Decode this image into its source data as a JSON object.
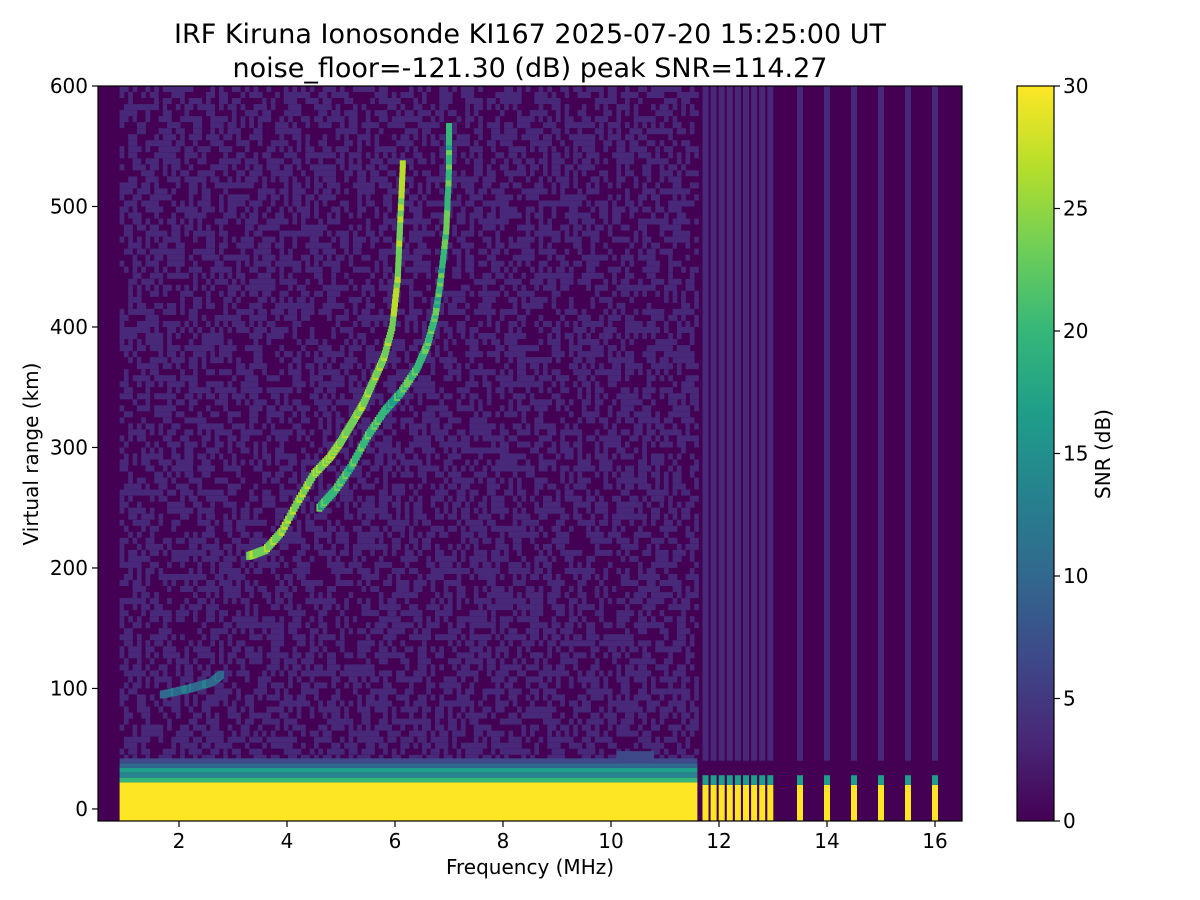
{
  "chart_data": {
    "type": "heatmap",
    "title": "IRF Kiruna Ionosonde KI167 2025-07-20 15:25:00  UT",
    "subtitle": "noise_floor=-121.30 (dB) peak SNR=114.27",
    "xlabel": "Frequency (MHz)",
    "ylabel": "Virtual range (km)",
    "xlim": [
      0.5,
      16.5
    ],
    "ylim": [
      -10,
      600
    ],
    "x_ticks": [
      2,
      4,
      6,
      8,
      10,
      12,
      14,
      16
    ],
    "x_tick_labels": [
      "2",
      "4",
      "6",
      "8",
      "10",
      "12",
      "14",
      "16"
    ],
    "y_ticks": [
      0,
      100,
      200,
      300,
      400,
      500,
      600
    ],
    "y_tick_labels": [
      "0",
      "100",
      "200",
      "300",
      "400",
      "500",
      "600"
    ],
    "colorbar": {
      "label": "SNR (dB)",
      "range": [
        0,
        30
      ],
      "ticks": [
        0,
        5,
        10,
        15,
        20,
        25,
        30
      ],
      "tick_labels": [
        "0",
        "5",
        "10",
        "15",
        "20",
        "25",
        "30"
      ],
      "colormap": "viridis",
      "colors": [
        "#440154",
        "#482878",
        "#3e4989",
        "#31688e",
        "#26828e",
        "#1f9e89",
        "#35b779",
        "#6ece58",
        "#b5de2b",
        "#fde725"
      ]
    },
    "sweep_frequency_range_mhz": [
      0.9,
      16.0
    ],
    "continuous_sweep_end_mhz": 11.6,
    "discrete_channels_mhz": [
      11.75,
      11.9,
      12.05,
      12.2,
      12.35,
      12.5,
      12.65,
      12.8,
      12.95,
      13.5,
      14.0,
      14.5,
      15.0,
      15.5,
      16.0
    ],
    "ground_echo_range_km": [
      0,
      40
    ],
    "traces": [
      {
        "mode": "o-mode",
        "points": [
          [
            3.3,
            210
          ],
          [
            3.6,
            215
          ],
          [
            3.9,
            230
          ],
          [
            4.2,
            255
          ],
          [
            4.5,
            278
          ],
          [
            4.8,
            292
          ],
          [
            5.0,
            305
          ],
          [
            5.2,
            320
          ],
          [
            5.4,
            335
          ],
          [
            5.6,
            355
          ],
          [
            5.8,
            375
          ],
          [
            5.95,
            400
          ],
          [
            6.05,
            440
          ],
          [
            6.1,
            490
          ],
          [
            6.15,
            540
          ]
        ]
      },
      {
        "mode": "x-mode",
        "points": [
          [
            4.6,
            250
          ],
          [
            4.9,
            265
          ],
          [
            5.2,
            285
          ],
          [
            5.5,
            310
          ],
          [
            5.8,
            330
          ],
          [
            6.1,
            345
          ],
          [
            6.4,
            365
          ],
          [
            6.6,
            385
          ],
          [
            6.75,
            410
          ],
          [
            6.85,
            440
          ],
          [
            6.95,
            480
          ],
          [
            7.0,
            530
          ],
          [
            7.0,
            570
          ]
        ]
      },
      {
        "mode": "lower-echo",
        "points": [
          [
            1.7,
            95
          ],
          [
            2.2,
            100
          ],
          [
            2.6,
            105
          ],
          [
            2.8,
            112
          ]
        ]
      }
    ]
  }
}
